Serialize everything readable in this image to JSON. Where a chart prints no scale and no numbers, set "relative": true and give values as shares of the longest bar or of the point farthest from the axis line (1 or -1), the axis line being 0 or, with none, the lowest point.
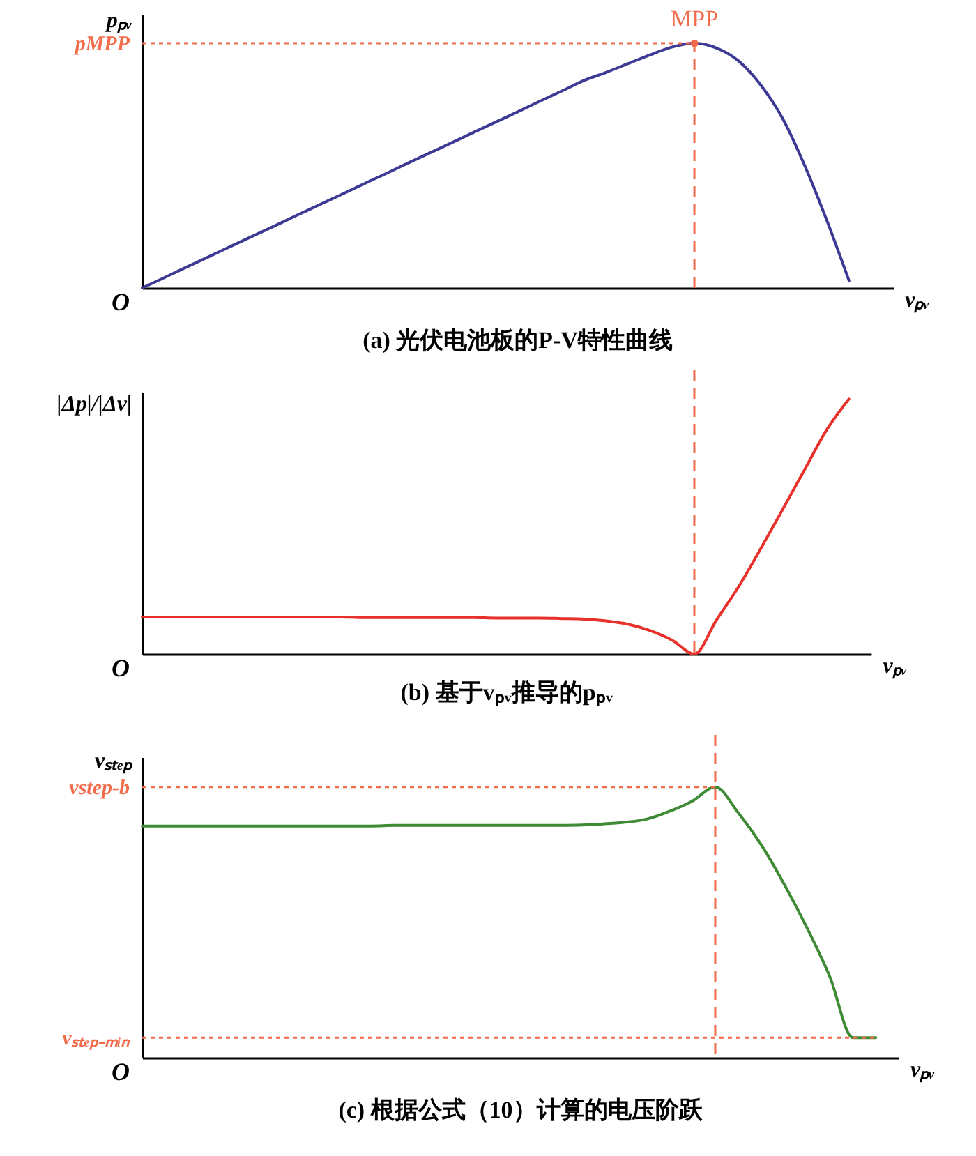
{
  "chart_data": [
    {
      "type": "line",
      "title": "(a) 光伏电池板的P-V特性曲线",
      "xlabel": "vₚᵥ",
      "ylabel": "pₚᵥ",
      "relative": true,
      "categories": [
        null,
        null,
        null,
        null,
        null,
        null,
        null,
        null,
        null,
        null,
        null,
        null,
        null,
        null,
        null,
        null,
        null,
        null,
        null,
        null,
        null,
        null,
        null,
        null,
        null,
        null,
        null,
        null,
        null,
        null,
        null,
        null,
        null,
        null,
        null
      ],
      "series": [
        {
          "color": "#3c3a94",
          "values": [
            0,
            0.042,
            0.085,
            0.127,
            0.17,
            0.212,
            0.254,
            0.297,
            0.339,
            0.381,
            0.424,
            0.466,
            0.509,
            0.551,
            0.593,
            0.636,
            0.678,
            0.72,
            0.763,
            0.805,
            0.848,
            0.881,
            0.917,
            0.953,
            0.985,
            1,
            0.981,
            0.928,
            0.83,
            0.692,
            0.499,
            0.275,
            0.03,
            null,
            null
          ]
        }
      ],
      "ref_lines": [
        {
          "axis": "y",
          "value": 1,
          "label": "pMPP",
          "color": "#f26b4a",
          "line_style": "dotted"
        }
      ],
      "annotations": [
        "O",
        {
          "text": "MPP",
          "y": 1
        }
      ]
    },
    {
      "type": "line",
      "title": "(b) 基于vₚᵥ推导的pₚᵥ",
      "xlabel": "vₚᵥ",
      "ylabel": "|Δp|/|Δv|",
      "relative": true,
      "categories": [
        null,
        null,
        null,
        null,
        null,
        null,
        null,
        null,
        null,
        null,
        null,
        null,
        null,
        null,
        null,
        null,
        null,
        null,
        null,
        null,
        null,
        null,
        null,
        null,
        null,
        null,
        null,
        null,
        null,
        null,
        null,
        null,
        null,
        null
      ],
      "series": [
        {
          "color": "#e8312b",
          "values": [
            0.145,
            0.145,
            0.145,
            0.145,
            0.145,
            0.145,
            0.145,
            0.145,
            0.145,
            0.145,
            0.143,
            0.143,
            0.143,
            0.143,
            0.143,
            0.143,
            0.141,
            0.141,
            0.141,
            0.139,
            0.137,
            0.13,
            0.117,
            0.092,
            0.054,
            0,
            0.133,
            0.263,
            0.412,
            0.567,
            0.724,
            0.88,
            1,
            null
          ]
        }
      ],
      "annotations": [
        "O"
      ]
    },
    {
      "type": "line",
      "title": "(c) 根据公式（10）计算的电压阶跃",
      "xlabel": "vₚᵥ",
      "ylabel": "vₛₜₑₚ",
      "relative": true,
      "categories": [
        null,
        null,
        null,
        null,
        null,
        null,
        null,
        null,
        null,
        null,
        null,
        null,
        null,
        null,
        null,
        null,
        null,
        null,
        null,
        null,
        null,
        null,
        null,
        null,
        null,
        null,
        null,
        null,
        null,
        null,
        null,
        null,
        null,
        null
      ],
      "series": [
        {
          "color": "#3f8a35",
          "values": [
            0.856,
            0.856,
            0.856,
            0.856,
            0.856,
            0.856,
            0.856,
            0.856,
            0.856,
            0.856,
            0.856,
            0.858,
            0.858,
            0.858,
            0.858,
            0.858,
            0.858,
            0.858,
            0.858,
            0.859,
            0.863,
            0.869,
            0.881,
            0.91,
            0.948,
            1,
            0.905,
            0.787,
            0.642,
            0.48,
            0.299,
            0.074,
            0.074,
            null
          ]
        }
      ],
      "ref_lines": [
        {
          "axis": "y",
          "value": 1,
          "label": "vstep-b",
          "color": "#f26b4a",
          "line_style": "dotted"
        },
        {
          "axis": "y",
          "value": 0.074,
          "label": "vₛₜₑₚ₋ₘᵢₙ",
          "color": "#f26b4a",
          "line_style": "dotted"
        }
      ],
      "annotations": [
        "O"
      ]
    }
  ]
}
